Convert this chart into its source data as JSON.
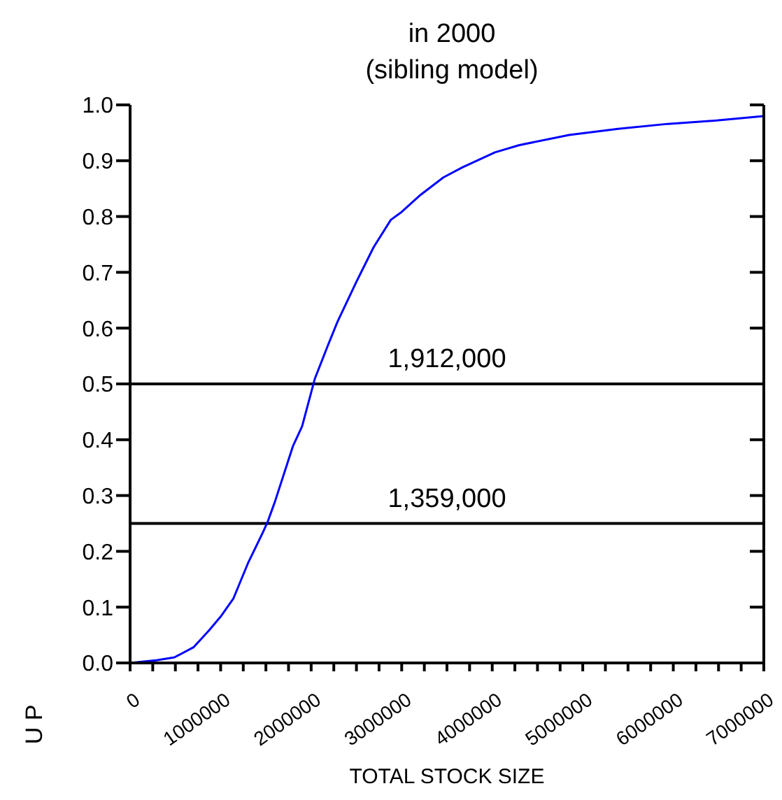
{
  "chart_data": {
    "type": "line",
    "title": "in 2000",
    "subtitle": "(sibling model)",
    "xlabel": "TOTAL STOCK SIZE",
    "ylabel": "U P",
    "x": [
      0,
      300000,
      490000,
      700000,
      870000,
      1000000,
      1140000,
      1300000,
      1470000,
      1520000,
      1600000,
      1800000,
      1900000,
      2040000,
      2180000,
      2290000,
      2500000,
      2690000,
      2880000,
      2990000,
      3210000,
      3460000,
      3670000,
      4030000,
      4300000,
      4850000,
      5390000,
      5940000,
      6480000,
      7000000
    ],
    "series": [
      {
        "color": "#0000ff",
        "values": [
          0,
          0.005,
          0.01,
          0.028,
          0.058,
          0.083,
          0.115,
          0.178,
          0.235,
          0.253,
          0.289,
          0.389,
          0.424,
          0.509,
          0.567,
          0.611,
          0.683,
          0.745,
          0.794,
          0.807,
          0.839,
          0.87,
          0.888,
          0.915,
          0.928,
          0.946,
          0.957,
          0.966,
          0.972,
          0.98
        ]
      }
    ],
    "xlim": [
      0,
      7000000
    ],
    "xticks": [
      0,
      {
        "value": 250000,
        "label": null
      },
      {
        "value": 500000,
        "label": null
      },
      {
        "value": 750000,
        "label": null
      },
      1000000,
      {
        "value": 1250000,
        "label": null
      },
      {
        "value": 1500000,
        "label": null
      },
      {
        "value": 1750000,
        "label": null
      },
      2000000,
      {
        "value": 2250000,
        "label": null
      },
      {
        "value": 2500000,
        "label": null
      },
      {
        "value": 2750000,
        "label": null
      },
      3000000,
      {
        "value": 3250000,
        "label": null
      },
      {
        "value": 3500000,
        "label": null
      },
      {
        "value": 3750000,
        "label": null
      },
      4000000,
      {
        "value": 4250000,
        "label": null
      },
      {
        "value": 4500000,
        "label": null
      },
      {
        "value": 4750000,
        "label": null
      },
      5000000,
      {
        "value": 5250000,
        "label": null
      },
      {
        "value": 5500000,
        "label": null
      },
      {
        "value": 5750000,
        "label": null
      },
      6000000,
      {
        "value": 6250000,
        "label": null
      },
      {
        "value": 6500000,
        "label": null
      },
      {
        "value": 6750000,
        "label": null
      },
      7000000
    ],
    "ylim": [
      0,
      1
    ],
    "yticks": [
      {
        "value": 0,
        "label": "0.0"
      },
      {
        "value": 0.1,
        "label": "0.1"
      },
      {
        "value": 0.2,
        "label": "0.2"
      },
      {
        "value": 0.3,
        "label": "0.3"
      },
      {
        "value": 0.4,
        "label": "0.4"
      },
      {
        "value": 0.5,
        "label": "0.5"
      },
      {
        "value": 0.6,
        "label": "0.6"
      },
      {
        "value": 0.7,
        "label": "0.7"
      },
      {
        "value": 0.8,
        "label": "0.8"
      },
      {
        "value": 0.9,
        "label": "0.9"
      },
      {
        "value": 1,
        "label": "1.0"
      }
    ],
    "ref_lines": [
      {
        "axis": "y",
        "value": 0.5,
        "color": "#000000"
      },
      {
        "axis": "y",
        "value": 0.25,
        "color": "#000000"
      }
    ],
    "annotations": [
      {
        "text": "1,912,000",
        "x": 3500000,
        "y": 0.5
      },
      {
        "text": "1,359,000",
        "x": 3500000,
        "y": 0.25
      }
    ]
  }
}
